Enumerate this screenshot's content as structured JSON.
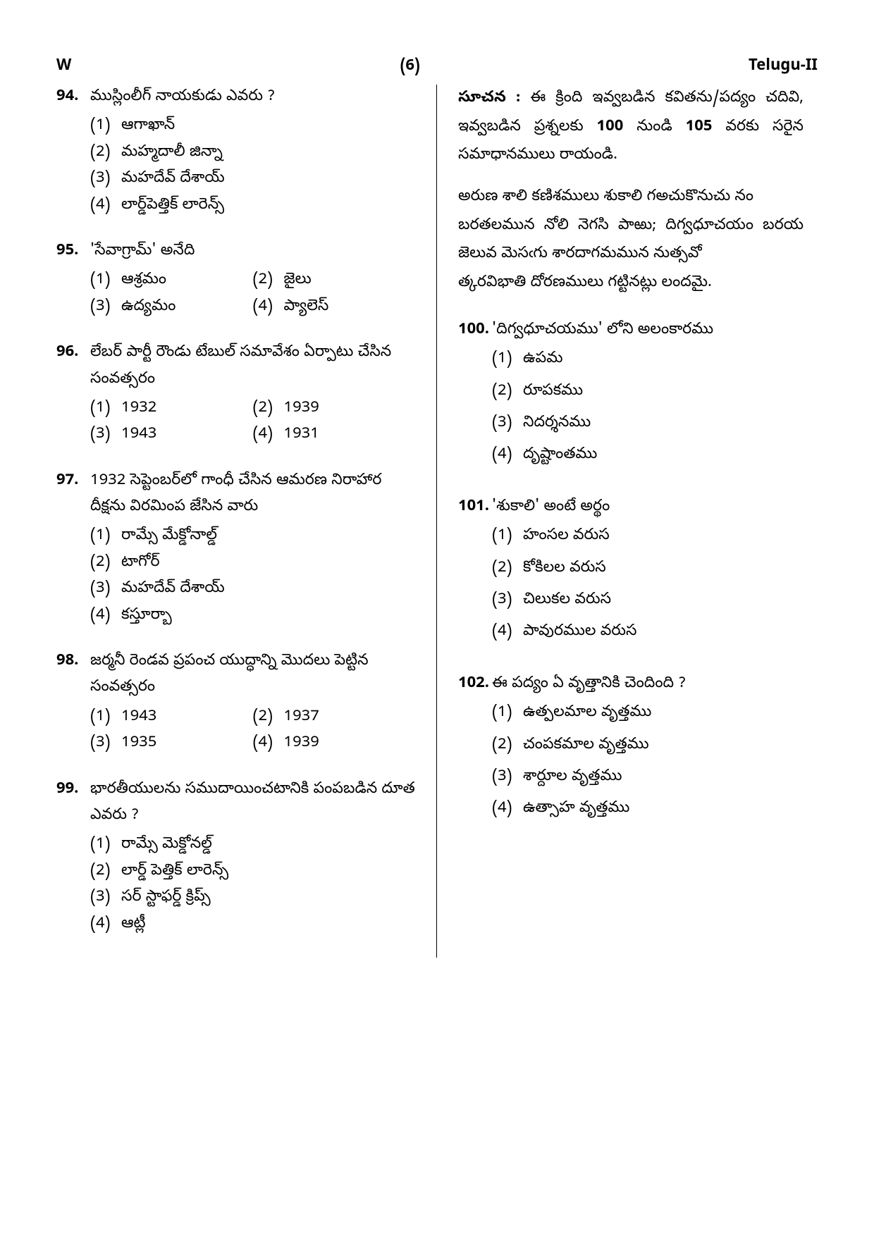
{
  "page": {
    "header_left": "W",
    "header_center": "(6)",
    "header_right": "Telugu-II",
    "background_color": "#ffffff",
    "text_color": "#000000"
  },
  "left_column": {
    "q94": {
      "num": "94.",
      "text": "ముస్లింలీగ్ నాయకుడు ఎవరు ?",
      "opts": [
        {
          "n": "(1)",
          "t": "ఆగాఖాన్"
        },
        {
          "n": "(2)",
          "t": "మహ్మదాలీ జిన్నా"
        },
        {
          "n": "(3)",
          "t": "మహదేవ్ దేశాయ్"
        },
        {
          "n": "(4)",
          "t": "లార్డ్‌పెత్తిక్ లారెన్స్"
        }
      ]
    },
    "q95": {
      "num": "95.",
      "text": "'సేవాగ్రామ్' అనేది",
      "opts": [
        {
          "n": "(1)",
          "t": "ఆశ్రమం"
        },
        {
          "n": "(2)",
          "t": "జైలు"
        },
        {
          "n": "(3)",
          "t": "ఉద్యమం"
        },
        {
          "n": "(4)",
          "t": "ప్యాలెస్"
        }
      ]
    },
    "q96": {
      "num": "96.",
      "text": "లేబర్ పార్టీ రౌండు టేబుల్ సమావేశం ఏర్పాటు చేసిన సంవత్సరం",
      "opts": [
        {
          "n": "(1)",
          "t": "1932"
        },
        {
          "n": "(2)",
          "t": "1939"
        },
        {
          "n": "(3)",
          "t": "1943"
        },
        {
          "n": "(4)",
          "t": "1931"
        }
      ]
    },
    "q97": {
      "num": "97.",
      "text": "1932 సెప్టెంబర్‌లో గాంధీ చేసిన ఆమరణ నిరాహార దీక్షను విరమింప జేసిన వారు",
      "opts": [
        {
          "n": "(1)",
          "t": "రామ్సే మేక్డోనాల్డ్"
        },
        {
          "n": "(2)",
          "t": "టాగోర్"
        },
        {
          "n": "(3)",
          "t": "మహదేవ్ దేశాయ్"
        },
        {
          "n": "(4)",
          "t": "కస్తూర్బా"
        }
      ]
    },
    "q98": {
      "num": "98.",
      "text": "జర్మనీ రెండవ ప్రపంచ యుద్ధాన్ని మొదలు పెట్టిన సంవత్సరం",
      "opts": [
        {
          "n": "(1)",
          "t": "1943"
        },
        {
          "n": "(2)",
          "t": "1937"
        },
        {
          "n": "(3)",
          "t": "1935"
        },
        {
          "n": "(4)",
          "t": "1939"
        }
      ]
    },
    "q99": {
      "num": "99.",
      "text": "భారతీయులను సముదాయించటానికి పంపబడిన దూత ఎవరు ?",
      "opts": [
        {
          "n": "(1)",
          "t": "రామ్సే మెక్డోనల్డ్"
        },
        {
          "n": "(2)",
          "t": "లార్డ్ పెత్తిక్ లారెన్స్"
        },
        {
          "n": "(3)",
          "t": "సర్ స్టాఫర్డ్ క్రిప్స్"
        },
        {
          "n": "(4)",
          "t": "ఆట్లీ"
        }
      ]
    }
  },
  "right_column": {
    "instruction": {
      "label": "సూచన :",
      "text": "ఈ క్రింది ఇవ్వబడిన కవితను/పద్యం చదివి, ఇవ్వబడిన ప్రశ్నలకు 100 నుండి 105 వరకు సరైన సమాధానములు రాయండి.",
      "bold_range": "100",
      "bold_range2": "105"
    },
    "poem": "అరుణ శాలి కణిశములు శుకాలి గఅచుకొనుచు నం\nబరతలమున నోలి నెగసి పాఱు; దిగ్వధూచయం బరయ‌ జెలువ మెసఁగు శారదాగమమున నుత్సవో\nత్కరవిభాతి‌ దోరణములు గట్టినట్లు లందమై.",
    "q100": {
      "num": "100.",
      "text": "'దిగ్వధూచయము' లోని అలంకారము",
      "opts": [
        {
          "n": "(1)",
          "t": "ఉపమ"
        },
        {
          "n": "(2)",
          "t": "రూపకము"
        },
        {
          "n": "(3)",
          "t": "నిదర్శనము"
        },
        {
          "n": "(4)",
          "t": "దృష్టాంతము"
        }
      ]
    },
    "q101": {
      "num": "101.",
      "text": "'శుకాలి' అంటే అర్థం",
      "opts": [
        {
          "n": "(1)",
          "t": "హంసల వరుస"
        },
        {
          "n": "(2)",
          "t": "కోకిలల వరుస"
        },
        {
          "n": "(3)",
          "t": "చిలుకల వరుస"
        },
        {
          "n": "(4)",
          "t": "పావురముల వరుస"
        }
      ]
    },
    "q102": {
      "num": "102.",
      "text": "ఈ పద్యం ఏ వృత్తానికి చెందింది ?",
      "opts": [
        {
          "n": "(1)",
          "t": "ఉత్పలమాల వృత్తము"
        },
        {
          "n": "(2)",
          "t": "చంపకమాల వృత్తము"
        },
        {
          "n": "(3)",
          "t": "శార్దూల వృత్తము"
        },
        {
          "n": "(4)",
          "t": "ఉత్సాహ వృత్తము"
        }
      ]
    }
  }
}
